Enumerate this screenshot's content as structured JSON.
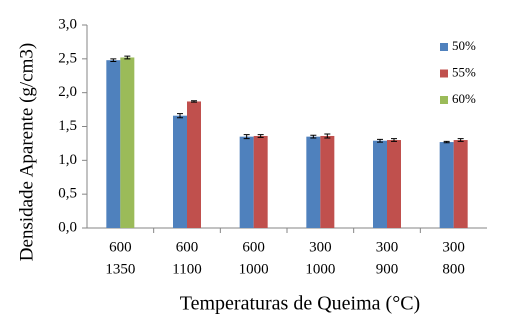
{
  "chart_data": {
    "type": "bar",
    "y_label": "Densidade  Aparente (g/cm3)",
    "x_label": "Temperaturas de Queima (°C)",
    "categories": [
      [
        "600",
        "1350"
      ],
      [
        "600",
        "1100"
      ],
      [
        "600",
        "1000"
      ],
      [
        "300",
        "1000"
      ],
      [
        "300",
        "900"
      ],
      [
        "300",
        "800"
      ]
    ],
    "series": [
      {
        "name": "50%",
        "color": "#4f81bd",
        "values": [
          2.48,
          1.66,
          1.35,
          1.35,
          1.29,
          1.27
        ],
        "errors": [
          0.02,
          0.03,
          0.03,
          0.02,
          0.02,
          0.01
        ]
      },
      {
        "name": "55%",
        "color": "#c0504d",
        "values": [
          null,
          1.87,
          1.36,
          1.36,
          1.3,
          1.3
        ],
        "errors": [
          null,
          0.01,
          0.02,
          0.03,
          0.02,
          0.02
        ]
      },
      {
        "name": "60%",
        "color": "#9bbb59",
        "values": [
          2.52,
          null,
          null,
          null,
          null,
          null
        ],
        "errors": [
          0.02,
          null,
          null,
          null,
          null,
          null
        ]
      }
    ],
    "ylim": [
      0,
      3
    ],
    "yticks": [
      {
        "value": 0,
        "label": "0,0"
      },
      {
        "value": 0.5,
        "label": "0,5"
      },
      {
        "value": 1,
        "label": "1,0"
      },
      {
        "value": 1.5,
        "label": "1,5"
      },
      {
        "value": 2,
        "label": "2,0"
      },
      {
        "value": 2.5,
        "label": "2,5"
      },
      {
        "value": 3,
        "label": "3,0"
      }
    ],
    "legend": "upper right"
  }
}
